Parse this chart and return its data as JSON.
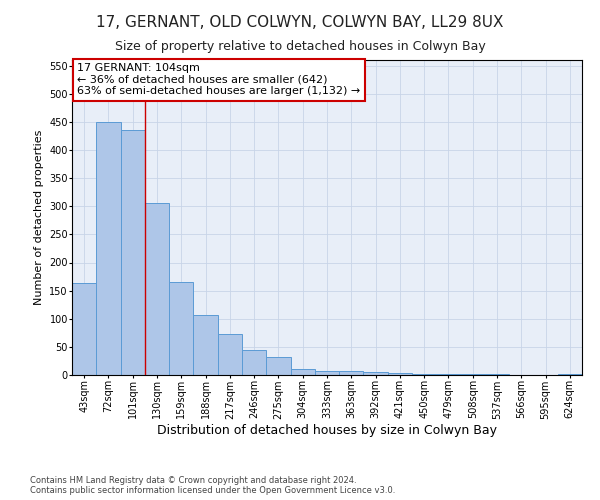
{
  "title": "17, GERNANT, OLD COLWYN, COLWYN BAY, LL29 8UX",
  "subtitle": "Size of property relative to detached houses in Colwyn Bay",
  "xlabel": "Distribution of detached houses by size in Colwyn Bay",
  "ylabel": "Number of detached properties",
  "categories": [
    "43sqm",
    "72sqm",
    "101sqm",
    "130sqm",
    "159sqm",
    "188sqm",
    "217sqm",
    "246sqm",
    "275sqm",
    "304sqm",
    "333sqm",
    "363sqm",
    "392sqm",
    "421sqm",
    "450sqm",
    "479sqm",
    "508sqm",
    "537sqm",
    "566sqm",
    "595sqm",
    "624sqm"
  ],
  "values": [
    163,
    450,
    435,
    305,
    165,
    107,
    73,
    44,
    32,
    10,
    8,
    8,
    5,
    3,
    2,
    1,
    1,
    1,
    0,
    0,
    1
  ],
  "bar_color": "#aec6e8",
  "bar_edge_color": "#5b9bd5",
  "ylim": [
    0,
    560
  ],
  "yticks": [
    0,
    50,
    100,
    150,
    200,
    250,
    300,
    350,
    400,
    450,
    500,
    550
  ],
  "vline_color": "#cc0000",
  "annotation_text": "17 GERNANT: 104sqm\n← 36% of detached houses are smaller (642)\n63% of semi-detached houses are larger (1,132) →",
  "annotation_box_color": "#cc0000",
  "footer_line1": "Contains HM Land Registry data © Crown copyright and database right 2024.",
  "footer_line2": "Contains public sector information licensed under the Open Government Licence v3.0.",
  "title_fontsize": 11,
  "subtitle_fontsize": 9,
  "xlabel_fontsize": 9,
  "ylabel_fontsize": 8,
  "tick_fontsize": 7,
  "annotation_fontsize": 8,
  "footer_fontsize": 6,
  "background_color": "#ffffff",
  "plot_bg_color": "#e8eef8",
  "grid_color": "#c8d4e8"
}
